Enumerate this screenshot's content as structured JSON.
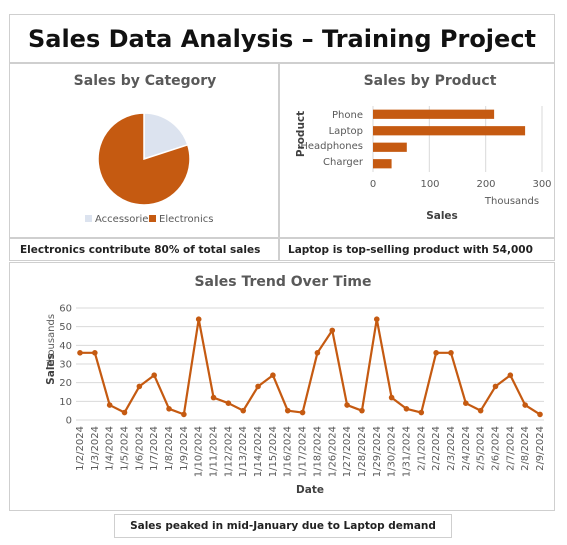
{
  "header": {
    "title": "Sales Data Analysis – Training Project"
  },
  "notes": {
    "electronics": "Electronics contribute 80% of total sales",
    "laptop": "Laptop is top-selling product with 54,000",
    "trend": "Sales peaked in mid-January due to Laptop demand"
  },
  "colors": {
    "accent": "#c55a11",
    "accessories": "#dce3ef",
    "grid": "#d9d9d9"
  },
  "chart_data": [
    {
      "type": "pie",
      "title": "Sales by Category",
      "labels": [
        "Accessories",
        "Electronics"
      ],
      "values": [
        20,
        80
      ],
      "legend": "bottom"
    },
    {
      "type": "bar",
      "orientation": "horizontal",
      "title": "Sales by Product",
      "categories": [
        "Phone",
        "Laptop",
        "Headphones",
        "Charger"
      ],
      "values": [
        215,
        270,
        60,
        33
      ],
      "xlabel": "Sales",
      "ylabel": "Product",
      "units_label": "Thousands",
      "xlim": [
        0,
        300
      ],
      "xticks": [
        "0",
        "100",
        "200",
        "300"
      ],
      "grid": true
    },
    {
      "type": "line",
      "title": "Sales Trend Over Time",
      "xlabel": "Date",
      "ylabel": "Sales",
      "units_label": "Thousands",
      "ylim": [
        0,
        60
      ],
      "yticks": [
        "0",
        "10",
        "20",
        "30",
        "40",
        "50",
        "60"
      ],
      "grid": true,
      "x": [
        "1/2/2024",
        "1/3/2024",
        "1/4/2024",
        "1/5/2024",
        "1/6/2024",
        "1/7/2024",
        "1/8/2024",
        "1/9/2024",
        "1/10/2024",
        "1/11/2024",
        "1/12/2024",
        "1/13/2024",
        "1/14/2024",
        "1/15/2024",
        "1/16/2024",
        "1/17/2024",
        "1/18/2024",
        "1/26/2024",
        "1/27/2024",
        "1/28/2024",
        "1/29/2024",
        "1/30/2024",
        "1/31/2024",
        "2/1/2024",
        "2/2/2024",
        "2/3/2024",
        "2/4/2024",
        "2/5/2024",
        "2/6/2024",
        "2/7/2024",
        "2/8/2024",
        "2/9/2024"
      ],
      "values": [
        36,
        36,
        8,
        4,
        18,
        24,
        6,
        3,
        54,
        12,
        9,
        5,
        18,
        24,
        5,
        4,
        36,
        48,
        8,
        5,
        54,
        12,
        6,
        4,
        36,
        36,
        9,
        5,
        18,
        24,
        8,
        3
      ]
    }
  ]
}
